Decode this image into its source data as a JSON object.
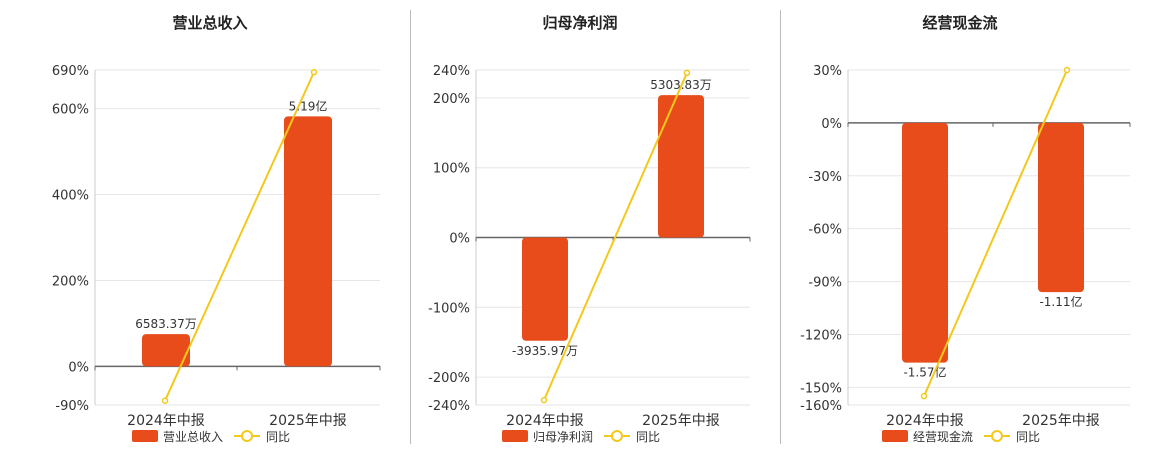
{
  "chart_data": [
    {
      "type": "bar",
      "title": "营业总收入",
      "categories": [
        "2024年中报",
        "2025年中报"
      ],
      "yticks": [
        "690%",
        "600%",
        "400%",
        "200%",
        "0%",
        "-90%"
      ],
      "ylim": [
        -90,
        690
      ],
      "series": [
        {
          "name": "营业总收入",
          "type": "bar",
          "values": [
            75,
            582
          ],
          "labels": [
            "6583.37万",
            "5.19亿"
          ]
        },
        {
          "name": "同比",
          "type": "line",
          "values": [
            -80,
            685
          ]
        }
      ],
      "legend": "bottom-center",
      "colors": {
        "bar": "#e84c1a",
        "line": "#f2c91c"
      }
    },
    {
      "type": "bar",
      "title": "归母净利润",
      "categories": [
        "2024年中报",
        "2025年中报"
      ],
      "yticks": [
        "240%",
        "200%",
        "100%",
        "0%",
        "-100%",
        "-200%",
        "-240%"
      ],
      "ylim": [
        -240,
        240
      ],
      "series": [
        {
          "name": "归母净利润",
          "type": "bar",
          "values": [
            -148,
            204
          ],
          "labels": [
            "-3935.97万",
            "5303.83万"
          ]
        },
        {
          "name": "同比",
          "type": "line",
          "values": [
            -233,
            236
          ]
        }
      ],
      "legend": "bottom-center",
      "colors": {
        "bar": "#e84c1a",
        "line": "#f2c91c"
      }
    },
    {
      "type": "bar",
      "title": "经营现金流",
      "categories": [
        "2024年中报",
        "2025年中报"
      ],
      "yticks": [
        "30%",
        "0%",
        "-30%",
        "-60%",
        "-90%",
        "-120%",
        "-150%",
        "-160%"
      ],
      "ylim": [
        -160,
        30
      ],
      "series": [
        {
          "name": "经营现金流",
          "type": "bar",
          "values": [
            -136,
            -96
          ],
          "labels": [
            "-1.57亿",
            "-1.11亿"
          ]
        },
        {
          "name": "同比",
          "type": "line",
          "values": [
            -155,
            30
          ]
        }
      ],
      "legend": "bottom-center",
      "colors": {
        "bar": "#e84c1a",
        "line": "#f2c91c"
      }
    }
  ]
}
